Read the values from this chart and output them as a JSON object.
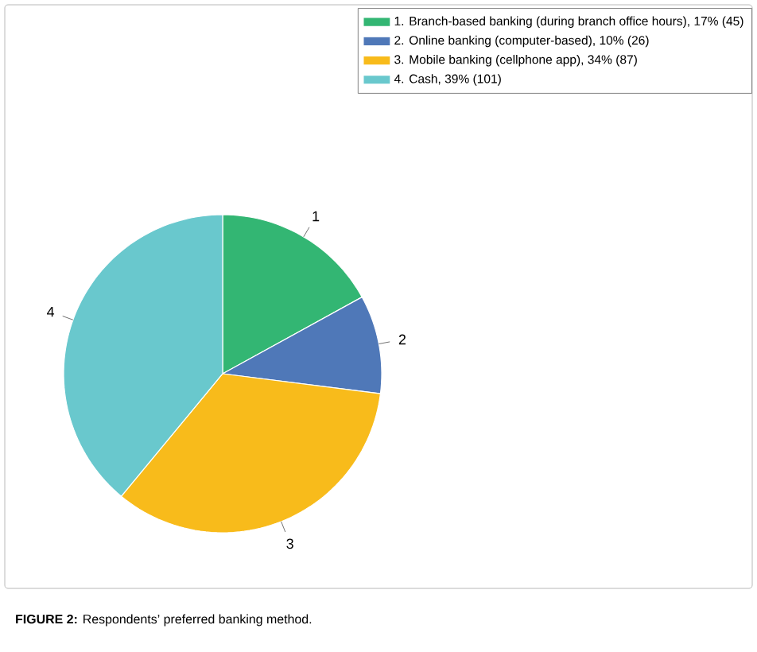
{
  "chart_data": {
    "type": "pie",
    "categories": [
      "1. Branch-based banking (during branch office hours), 17% (45)",
      "2. Online banking (computer-based), 10% (26)",
      "3. Mobile banking (cellphone app), 34% (87)",
      "4. Cash, 39% (101)"
    ],
    "values": [
      17,
      10,
      34,
      39
    ],
    "colors": [
      "#33b673",
      "#4f78b8",
      "#f8bb1b",
      "#69c8cd"
    ],
    "legend": "top right",
    "annotations": [
      "**FIGURE 2:** Respondents’ preferred banking method.",
      {
        "text": "1",
        "x": "1. Branch-based banking (during branch office hours), 17% (45)"
      },
      {
        "text": "2",
        "x": "2. Online banking (computer-based), 10% (26)"
      },
      {
        "text": "3",
        "x": "3. Mobile banking (cellphone app), 34% (87)"
      },
      {
        "text": "4",
        "x": "4. Cash, 39% (101)"
      }
    ]
  }
}
